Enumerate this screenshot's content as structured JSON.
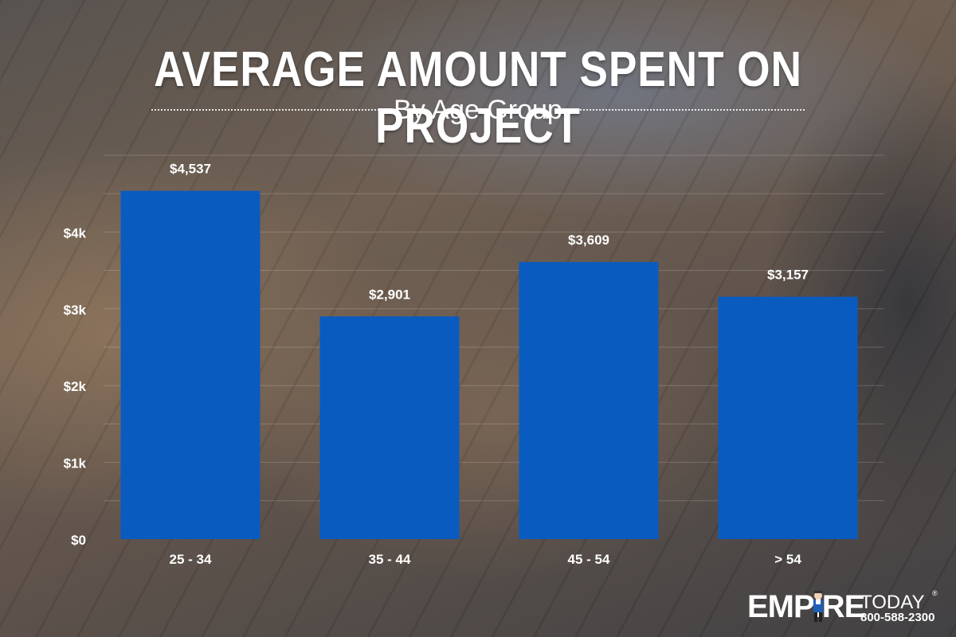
{
  "header": {
    "title": "AVERAGE AMOUNT SPENT ON PROJECT",
    "subtitle": "By Age Group"
  },
  "logo": {
    "word": "EMPIRE",
    "today": "TODAY",
    "phone": "800-588-2300",
    "reg": "®"
  },
  "colors": {
    "bar": "#0a5bbf",
    "text": "#ffffff",
    "grid": "rgba(255,255,255,0.18)"
  },
  "chart_data": {
    "type": "bar",
    "categories": [
      "25 - 34",
      "35 - 44",
      "45 - 54",
      "> 54"
    ],
    "values": [
      4537,
      2901,
      3609,
      3157
    ],
    "value_labels": [
      "$4,537",
      "$2,901",
      "$3,609",
      "$3,157"
    ],
    "yticks": [
      0,
      1000,
      2000,
      3000,
      4000
    ],
    "ytick_labels": [
      "$0",
      "$1k",
      "$2k",
      "$3k",
      "$4k"
    ],
    "ylim": [
      0,
      5000
    ],
    "grid": true,
    "legend": "none"
  }
}
